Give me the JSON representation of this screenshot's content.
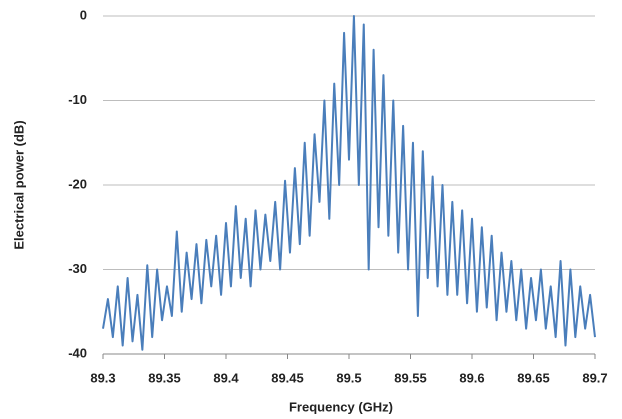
{
  "chart_data": {
    "type": "line",
    "xlabel": "Frequency (GHz)",
    "ylabel": "Electrical power (dB)",
    "xlim": [
      89.3,
      89.7
    ],
    "ylim": [
      -40,
      0
    ],
    "xticks": [
      89.3,
      89.35,
      89.4,
      89.45,
      89.5,
      89.55,
      89.6,
      89.65,
      89.7
    ],
    "yticks": [
      0,
      -10,
      -20,
      -30,
      -40
    ],
    "grid": true,
    "series": [
      {
        "color": "#4a7ebb",
        "x": [
          89.3,
          89.304,
          89.308,
          89.312,
          89.316,
          89.32,
          89.324,
          89.328,
          89.332,
          89.336,
          89.34,
          89.344,
          89.348,
          89.352,
          89.356,
          89.36,
          89.364,
          89.368,
          89.372,
          89.376,
          89.38,
          89.384,
          89.388,
          89.392,
          89.396,
          89.4,
          89.404,
          89.408,
          89.412,
          89.416,
          89.42,
          89.424,
          89.428,
          89.432,
          89.436,
          89.44,
          89.444,
          89.448,
          89.452,
          89.456,
          89.46,
          89.464,
          89.468,
          89.472,
          89.476,
          89.48,
          89.484,
          89.488,
          89.492,
          89.496,
          89.5,
          89.504,
          89.508,
          89.512,
          89.516,
          89.52,
          89.524,
          89.528,
          89.532,
          89.536,
          89.54,
          89.544,
          89.548,
          89.552,
          89.556,
          89.56,
          89.564,
          89.568,
          89.572,
          89.576,
          89.58,
          89.584,
          89.588,
          89.592,
          89.596,
          89.6,
          89.604,
          89.608,
          89.612,
          89.616,
          89.62,
          89.624,
          89.628,
          89.632,
          89.636,
          89.64,
          89.644,
          89.648,
          89.652,
          89.656,
          89.66,
          89.664,
          89.668,
          89.672,
          89.676,
          89.68,
          89.684,
          89.688,
          89.692,
          89.696,
          89.7
        ],
        "values": [
          -37,
          -33.5,
          -38,
          -32,
          -39,
          -31,
          -38.5,
          -33,
          -39.5,
          -29.5,
          -38,
          -30,
          -36,
          -32,
          -35.5,
          -25.5,
          -35,
          -28,
          -33.5,
          -27,
          -34,
          -26.5,
          -32,
          -26,
          -33,
          -24.5,
          -32,
          -22.5,
          -31,
          -24,
          -32,
          -23,
          -30,
          -23.5,
          -29,
          -22,
          -30,
          -19.5,
          -28,
          -18,
          -27,
          -15,
          -26,
          -14,
          -22,
          -10,
          -24,
          -8,
          -20,
          -2,
          -17,
          0,
          -20,
          -1,
          -30,
          -4,
          -25,
          -7,
          -26,
          -10,
          -28,
          -13,
          -30,
          -15,
          -35.5,
          -16,
          -31,
          -19,
          -32,
          -20,
          -33,
          -22,
          -33,
          -23,
          -34,
          -24,
          -35,
          -25,
          -34.5,
          -26,
          -36,
          -28,
          -35,
          -29,
          -36,
          -30,
          -37,
          -31,
          -36,
          -30,
          -37,
          -32,
          -38,
          -29,
          -39,
          -30,
          -38,
          -32,
          -37,
          -33,
          -38
        ]
      }
    ]
  }
}
